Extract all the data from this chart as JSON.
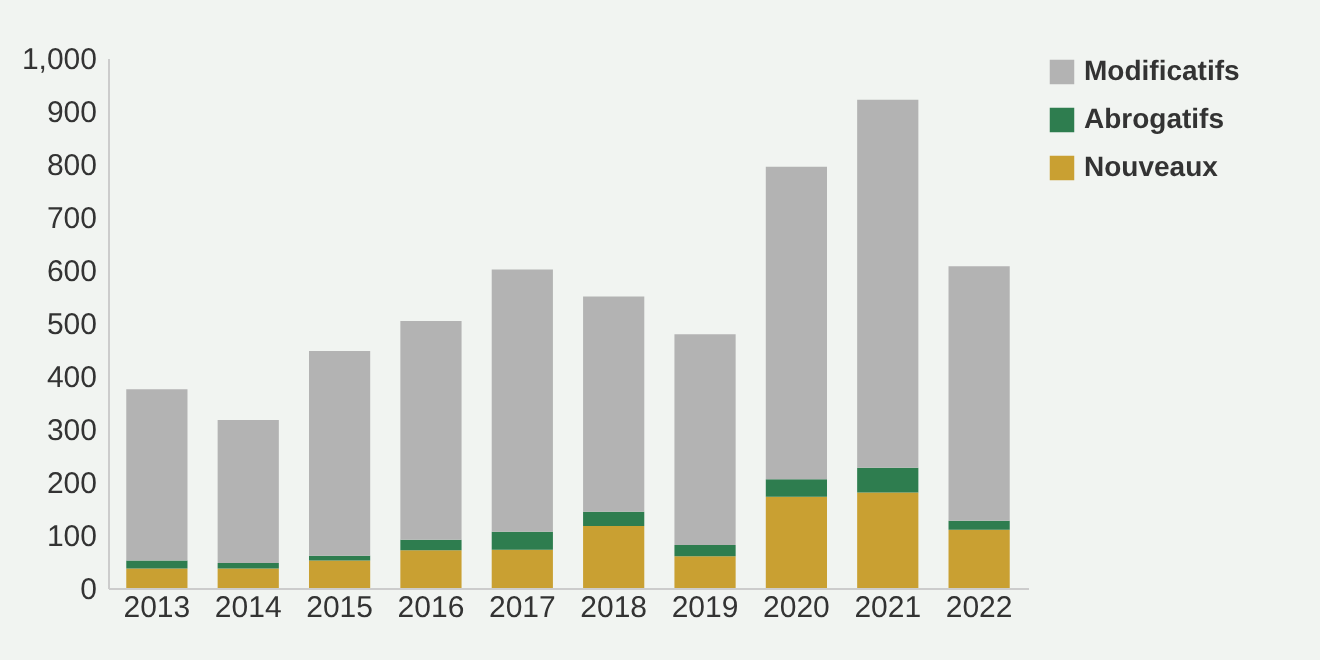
{
  "chart_data": {
    "type": "bar",
    "stacked": true,
    "categories": [
      "2013",
      "2014",
      "2015",
      "2016",
      "2017",
      "2018",
      "2019",
      "2020",
      "2021",
      "2022"
    ],
    "series": [
      {
        "name": "Nouveaux",
        "color": "#c9a032",
        "values": [
          37,
          37,
          52,
          71,
          72,
          117,
          60,
          172,
          180,
          110
        ]
      },
      {
        "name": "Abrogatifs",
        "color": "#2e7d4f",
        "values": [
          15,
          10,
          9,
          20,
          34,
          27,
          21,
          33,
          47,
          17
        ]
      },
      {
        "name": "Modificatifs",
        "color": "#b3b3b3",
        "values": [
          323,
          270,
          386,
          413,
          495,
          406,
          398,
          590,
          694,
          480
        ]
      }
    ],
    "ylim": [
      0,
      1000
    ],
    "yticks": [
      0,
      100,
      200,
      300,
      400,
      500,
      600,
      700,
      800,
      900,
      {
        "value": 1000,
        "label": "1,000"
      }
    ],
    "grid": false,
    "legend": "right"
  }
}
